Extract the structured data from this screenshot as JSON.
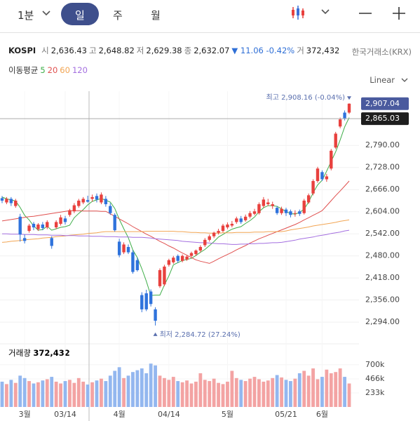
{
  "toolbar": {
    "interval": "1분",
    "tabs": [
      "일",
      "주",
      "월"
    ]
  },
  "info": {
    "symbol": "KOSPI",
    "items": [
      {
        "label": "시",
        "value": "2,636.43"
      },
      {
        "label": "고",
        "value": "2,648.82"
      },
      {
        "label": "저",
        "value": "2,629.38"
      },
      {
        "label": "종",
        "value": "2,632.07"
      }
    ],
    "change": "▼ 11.06 -0.42%",
    "volume_label": "거",
    "volume": "372,432",
    "exchange": "한국거래소(KRX)"
  },
  "chart_data": {
    "type": "candlestick",
    "scale_label": "Linear",
    "ma_label": "이동평균",
    "up_color": "#e8413e",
    "down_color": "#2f73dc",
    "volume_up_color": "#f3a3a3",
    "volume_down_color": "#93b7ef",
    "categories": [
      null,
      null,
      null,
      null,
      null,
      "3월",
      null,
      null,
      null,
      null,
      null,
      null,
      null,
      null,
      "03/14",
      null,
      null,
      null,
      null,
      null,
      null,
      null,
      null,
      null,
      null,
      null,
      "4월",
      null,
      null,
      null,
      null,
      null,
      null,
      null,
      null,
      null,
      null,
      "04/14",
      null,
      null,
      null,
      null,
      null,
      null,
      null,
      null,
      null,
      null,
      null,
      null,
      "5월",
      null,
      null,
      null,
      null,
      null,
      null,
      null,
      null,
      null,
      null,
      null,
      null,
      "05/21",
      null,
      null,
      null,
      null,
      null,
      null,
      null,
      "6월",
      null,
      null,
      null,
      null,
      null,
      null
    ],
    "open": [
      2642,
      2630,
      2640,
      2620,
      2590,
      2530,
      2550,
      2570,
      2555,
      2568,
      2560,
      2530,
      2560,
      2570,
      2585,
      2595,
      2605,
      2620,
      2630,
      2636.43,
      2640,
      2648,
      2630,
      2640,
      2620,
      2595,
      2520,
      2490,
      2505,
      2490,
      2468,
      2370,
      2375,
      2380,
      2330,
      2395,
      2400,
      2455,
      2462,
      2480,
      2466,
      2470,
      2480,
      2485,
      2495,
      2510,
      2525,
      2535,
      2545,
      2550,
      2560,
      2565,
      2575,
      2585,
      2580,
      2590,
      2598,
      2600,
      2620,
      2625,
      2620,
      2615,
      2600,
      2610,
      2605,
      2598,
      2605,
      2600,
      2630,
      2655,
      2690,
      2715,
      2695,
      2725,
      2784,
      2843,
      2882,
      2882
    ],
    "high": [
      2648,
      2645,
      2645,
      2640,
      2598,
      2540,
      2570,
      2575,
      2572,
      2575,
      2580,
      2535,
      2580,
      2595,
      2592,
      2612,
      2628,
      2640,
      2645,
      2648.82,
      2652,
      2655,
      2658,
      2648,
      2628,
      2600,
      2528,
      2518,
      2512,
      2496,
      2475,
      2378,
      2385,
      2386,
      2336,
      2445,
      2455,
      2472,
      2480,
      2484,
      2484,
      2482,
      2492,
      2498,
      2510,
      2530,
      2540,
      2548,
      2556,
      2570,
      2574,
      2578,
      2590,
      2592,
      2596,
      2606,
      2612,
      2630,
      2645,
      2640,
      2632,
      2620,
      2618,
      2615,
      2610,
      2608,
      2610,
      2640,
      2655,
      2695,
      2730,
      2720,
      2710,
      2780,
      2828,
      2868,
      2888,
      2908.16
    ],
    "low": [
      2628,
      2625,
      2620,
      2615,
      2520,
      2515,
      2545,
      2552,
      2550,
      2552,
      2555,
      2500,
      2555,
      2565,
      2568,
      2590,
      2600,
      2615,
      2625,
      2629.38,
      2632,
      2630,
      2625,
      2618,
      2595,
      2548,
      2476,
      2485,
      2485,
      2430,
      2436,
      2322,
      2325,
      2338,
      2284.72,
      2390,
      2395,
      2450,
      2458,
      2460,
      2462,
      2466,
      2476,
      2480,
      2490,
      2505,
      2520,
      2530,
      2540,
      2546,
      2555,
      2560,
      2570,
      2570,
      2576,
      2585,
      2594,
      2596,
      2615,
      2620,
      2612,
      2595,
      2595,
      2592,
      2588,
      2590,
      2592,
      2596,
      2626,
      2650,
      2685,
      2690,
      2688,
      2720,
      2780,
      2838,
      2860,
      2878
    ],
    "close": [
      2635,
      2640,
      2628,
      2635,
      2540,
      2522,
      2565,
      2560,
      2568,
      2558,
      2575,
      2508,
      2575,
      2588,
      2575,
      2608,
      2622,
      2635,
      2640,
      2632.07,
      2645,
      2638,
      2652,
      2625,
      2600,
      2552,
      2482,
      2512,
      2490,
      2435,
      2440,
      2330,
      2330,
      2345,
      2298,
      2440,
      2450,
      2468,
      2475,
      2466,
      2480,
      2478,
      2488,
      2495,
      2505,
      2525,
      2535,
      2545,
      2550,
      2565,
      2568,
      2570,
      2585,
      2575,
      2590,
      2600,
      2605,
      2625,
      2638,
      2630,
      2625,
      2600,
      2612,
      2600,
      2595,
      2600,
      2598,
      2635,
      2650,
      2690,
      2725,
      2695,
      2703,
      2775,
      2823,
      2863,
      2866,
      2907.04
    ],
    "moving_averages": [
      {
        "name": "5",
        "color": "#3fae49",
        "values": [
          2645,
          2640,
          2637,
          2634,
          2616,
          2594,
          2581,
          2564,
          2552,
          2554,
          2563,
          2552,
          2556,
          2560,
          2562,
          2566,
          2587,
          2599,
          2610,
          2623,
          2633,
          2637,
          2641,
          2636,
          2631,
          2613,
          2583,
          2556,
          2531,
          2497,
          2475,
          2444,
          2409,
          2369,
          2370,
          2370,
          2398,
          2424,
          2455,
          2461,
          2467,
          2470,
          2473,
          2481,
          2490,
          2498,
          2509,
          2520,
          2533,
          2540,
          2548,
          2555,
          2559,
          2562,
          2571,
          2579,
          2589,
          2604,
          2615,
          2621,
          2621,
          2619,
          2612,
          2604,
          2599,
          2597,
          2602,
          2611,
          2631,
          2657,
          2679,
          2692,
          2718,
          2745,
          2772,
          2805,
          2842,
          2868
        ]
      },
      {
        "name": "20",
        "color": "#e0504f",
        "values": [
          2578,
          2580,
          2582,
          2584,
          2586,
          2588,
          2590,
          2591,
          2593,
          2595,
          2597,
          2599,
          2601,
          2603,
          2605,
          2607,
          2607,
          2607,
          2606,
          2606,
          2606,
          2606,
          2605,
          2605,
          2598,
          2591,
          2584,
          2577,
          2570,
          2562,
          2555,
          2548,
          2541,
          2535,
          2528,
          2521,
          2515,
          2508,
          2502,
          2495,
          2488,
          2482,
          2475,
          2469,
          2465,
          2462,
          2459,
          2465,
          2472,
          2478,
          2484,
          2490,
          2497,
          2503,
          2509,
          2516,
          2522,
          2528,
          2533,
          2538,
          2543,
          2548,
          2553,
          2558,
          2563,
          2568,
          2574,
          2581,
          2587,
          2594,
          2600,
          2607,
          2621,
          2635,
          2649,
          2662,
          2676,
          2690
        ]
      },
      {
        "name": "60",
        "color": "#f2a553",
        "values": [
          2518,
          2519,
          2521,
          2522,
          2523,
          2525,
          2526,
          2527,
          2528,
          2530,
          2531,
          2532,
          2534,
          2535,
          2536,
          2538,
          2539,
          2540,
          2541,
          2543,
          2544,
          2545,
          2547,
          2548,
          2548,
          2548,
          2548,
          2548,
          2548,
          2548,
          2548,
          2548,
          2549,
          2549,
          2549,
          2549,
          2549,
          2549,
          2549,
          2548,
          2548,
          2547,
          2546,
          2546,
          2545,
          2545,
          2544,
          2544,
          2544,
          2545,
          2545,
          2545,
          2546,
          2546,
          2546,
          2546,
          2547,
          2547,
          2547,
          2548,
          2548,
          2548,
          2548,
          2550,
          2553,
          2555,
          2557,
          2559,
          2561,
          2564,
          2566,
          2568,
          2570,
          2572,
          2574,
          2577,
          2579,
          2581
        ]
      },
      {
        "name": "120",
        "color": "#a46fe0",
        "values": [
          2542,
          2542,
          2541,
          2541,
          2541,
          2540,
          2540,
          2540,
          2539,
          2539,
          2539,
          2538,
          2538,
          2538,
          2537,
          2537,
          2537,
          2536,
          2536,
          2536,
          2535,
          2535,
          2535,
          2534,
          2534,
          2534,
          2533,
          2533,
          2533,
          2532,
          2532,
          2532,
          2531,
          2530,
          2528,
          2527,
          2526,
          2525,
          2524,
          2523,
          2521,
          2520,
          2519,
          2518,
          2517,
          2517,
          2516,
          2515,
          2514,
          2514,
          2513,
          2512,
          2512,
          2513,
          2513,
          2514,
          2514,
          2515,
          2515,
          2516,
          2517,
          2517,
          2518,
          2520,
          2522,
          2524,
          2527,
          2529,
          2531,
          2533,
          2536,
          2538,
          2540,
          2543,
          2545,
          2547,
          2550,
          2552
        ]
      }
    ],
    "ylim": [
      2253,
      2942
    ],
    "yticks": [
      {
        "value": 2294,
        "label": "2,294.00"
      },
      {
        "value": 2356,
        "label": "2,356.00"
      },
      {
        "value": 2418,
        "label": "2,418.00"
      },
      {
        "value": 2480,
        "label": "2,480.00"
      },
      {
        "value": 2542,
        "label": "2,542.00"
      },
      {
        "value": 2604,
        "label": "2,604.00"
      },
      {
        "value": 2666,
        "label": "2,666.00"
      },
      {
        "value": 2728,
        "label": "2,728.00"
      },
      {
        "value": 2790,
        "label": "2,790.00"
      }
    ],
    "price_labels": [
      {
        "value": 2907.04,
        "label": "2,907.04",
        "color": "#4a5a9e"
      },
      {
        "value": 2865.03,
        "label": "2,865.03",
        "color": "#1e1e1e"
      }
    ],
    "annotations": {
      "high": "최고 2,908.16 (-0.04%)",
      "low": "최저 2,284.72 (27.24%)"
    },
    "volume": {
      "label": "거래량",
      "value_label": "372,432",
      "values": [
        420000,
        380000,
        450000,
        400000,
        520000,
        480000,
        430000,
        390000,
        410000,
        440000,
        460000,
        500000,
        420000,
        390000,
        430000,
        450000,
        400000,
        480000,
        420000,
        372432,
        410000,
        440000,
        470000,
        430000,
        520000,
        600000,
        660000,
        480000,
        520000,
        580000,
        610000,
        640000,
        560000,
        720000,
        690000,
        520000,
        480000,
        450000,
        500000,
        430000,
        410000,
        440000,
        390000,
        420000,
        560000,
        450000,
        430000,
        470000,
        400000,
        380000,
        420000,
        600000,
        480000,
        450000,
        430000,
        470000,
        500000,
        460000,
        420000,
        440000,
        480000,
        530000,
        490000,
        450000,
        430000,
        470000,
        560000,
        600000,
        520000,
        640000,
        460000,
        500000,
        620000,
        560000,
        580000,
        640000,
        500000,
        390000
      ],
      "ylim": [
        0,
        1025000
      ],
      "yticks": [
        {
          "value": 233000,
          "label": "233k"
        },
        {
          "value": 466000,
          "label": "466k"
        },
        {
          "value": 700000,
          "label": "700k"
        }
      ]
    }
  }
}
